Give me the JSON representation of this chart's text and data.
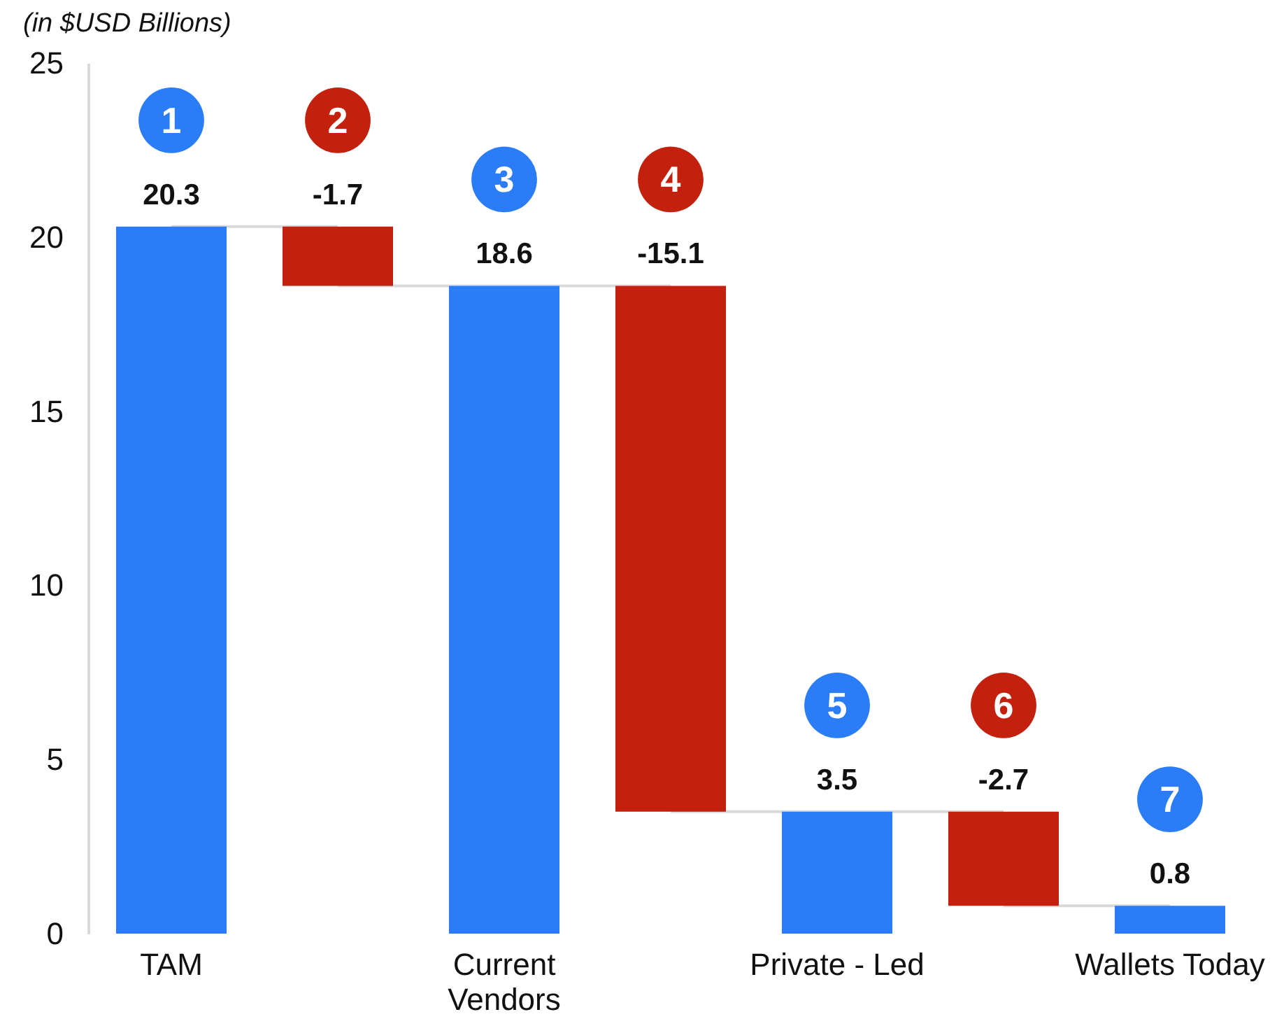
{
  "chart_data": {
    "type": "bar",
    "ylabel": "(in $USD Billions)",
    "categories": [
      "TAM",
      null,
      "Current Vendors",
      null,
      "Private - Led",
      null,
      "Wallets Today"
    ],
    "values": [
      20.3,
      -1.7,
      18.6,
      -15.1,
      3.5,
      -2.7,
      0.8
    ],
    "base": [
      0,
      20.3,
      0,
      18.6,
      0,
      3.5,
      0
    ],
    "colors": [
      "#2a7df7",
      "#c3200e",
      "#2a7df7",
      "#c3200e",
      "#2a7df7",
      "#c3200e",
      "#2a7df7"
    ],
    "ylim": [
      0,
      25
    ],
    "yticks": [
      0,
      5,
      10,
      15,
      20,
      25
    ],
    "data_labels": true,
    "annotations": [
      "1",
      "2",
      "3",
      "4",
      "5",
      "6",
      "7"
    ]
  }
}
